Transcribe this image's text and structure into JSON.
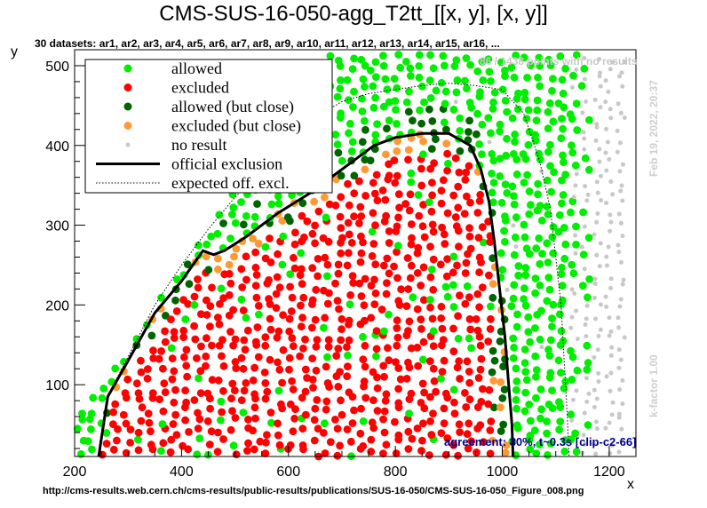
{
  "header": {
    "title": "CMS-SUS-16-050-agg_T2tt_[[x, y], [x, y]]",
    "subtitle": "30 datasets: ar1, ar2, ar3, ar4, ar5, ar6, ar7, ar8, ar9, ar10, ar11, ar12, ar13, ar14, ar15, ar16,  ...",
    "no_results_note": "86 / 1438 points with no results",
    "timestamp": "Feb 19, 2022, 20:37",
    "kfactor": "k-factor 1.00",
    "agreement": "agreement: 80%, t~0.3s [clip-c2-66]",
    "source_url": "http://cms-results.web.cern.ch/cms-results/public-results/publications/SUS-16-050/CMS-SUS-16-050_Figure_008.png"
  },
  "colors": {
    "allowed": "#00ee00",
    "excluded": "#ff0000",
    "allowed_close": "#006400",
    "excluded_close": "#ff9933",
    "no_result": "#c8c8c8"
  },
  "chart_data": {
    "type": "scatter",
    "xlabel": "x",
    "ylabel": "y",
    "xlim": [
      200,
      1250
    ],
    "ylim": [
      10,
      520
    ],
    "xticks": [
      "200",
      "400",
      "600",
      "800",
      "1000",
      "1200"
    ],
    "yticks": [
      "100",
      "200",
      "300",
      "400",
      "500"
    ],
    "legend_position": "top-left",
    "legend": [
      {
        "label": "allowed",
        "kind": "allowed"
      },
      {
        "label": "excluded",
        "kind": "excluded"
      },
      {
        "label": "allowed (but close)",
        "kind": "allowed_close"
      },
      {
        "label": "excluded (but close)",
        "kind": "excluded_close"
      },
      {
        "label": "no result",
        "kind": "no_result"
      },
      {
        "label": "official exclusion",
        "kind": "official_line"
      },
      {
        "label": "expected off. excl.",
        "kind": "expected_line"
      }
    ],
    "official_exclusion": [
      [
        245,
        10
      ],
      [
        262,
        85
      ],
      [
        300,
        130
      ],
      [
        350,
        190
      ],
      [
        400,
        230
      ],
      [
        440,
        268
      ],
      [
        460,
        263
      ],
      [
        480,
        268
      ],
      [
        520,
        285
      ],
      [
        580,
        315
      ],
      [
        640,
        340
      ],
      [
        700,
        370
      ],
      [
        760,
        400
      ],
      [
        800,
        410
      ],
      [
        850,
        415
      ],
      [
        900,
        415
      ],
      [
        940,
        400
      ],
      [
        960,
        370
      ],
      [
        975,
        330
      ],
      [
        985,
        280
      ],
      [
        995,
        220
      ],
      [
        1005,
        160
      ],
      [
        1012,
        100
      ],
      [
        1018,
        50
      ],
      [
        1020,
        10
      ]
    ],
    "expected_exclusion": [
      [
        245,
        10
      ],
      [
        265,
        90
      ],
      [
        300,
        135
      ],
      [
        350,
        200
      ],
      [
        400,
        250
      ],
      [
        450,
        295
      ],
      [
        500,
        335
      ],
      [
        550,
        370
      ],
      [
        600,
        405
      ],
      [
        650,
        435
      ],
      [
        700,
        455
      ],
      [
        750,
        465
      ],
      [
        800,
        470
      ],
      [
        850,
        475
      ],
      [
        900,
        478
      ],
      [
        950,
        475
      ],
      [
        1000,
        470
      ],
      [
        1040,
        440
      ],
      [
        1070,
        380
      ],
      [
        1090,
        320
      ],
      [
        1100,
        260
      ],
      [
        1110,
        200
      ],
      [
        1115,
        140
      ],
      [
        1120,
        80
      ],
      [
        1125,
        10
      ]
    ]
  }
}
